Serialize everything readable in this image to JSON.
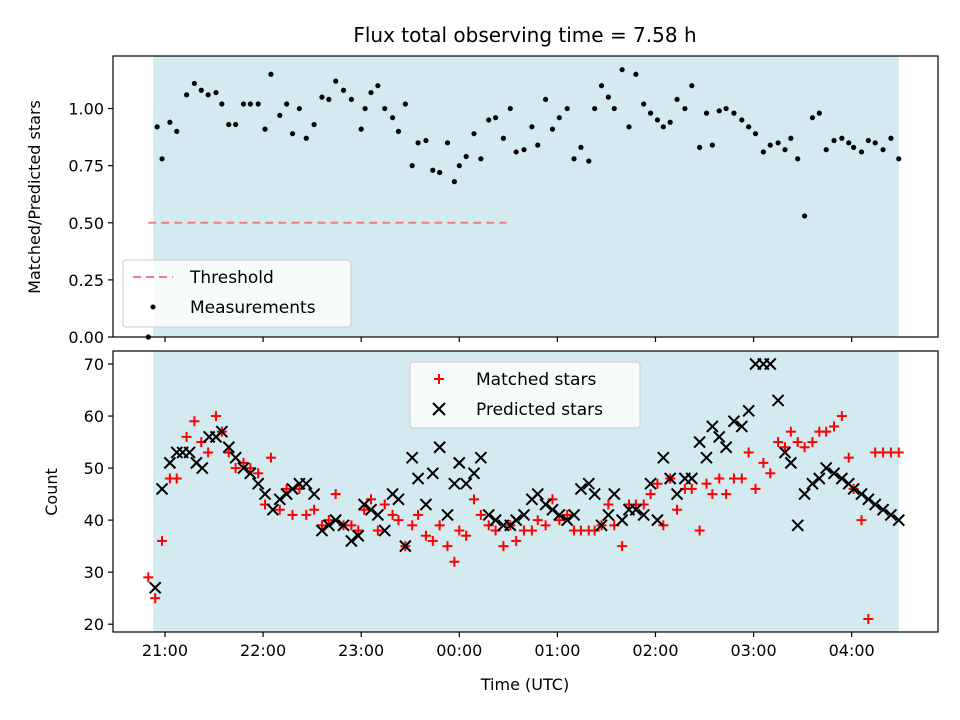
{
  "chart_data": [
    {
      "type": "scatter",
      "title": "Flux total observing time = 7.58 h",
      "ylabel": "Matched/Predicted stars",
      "xlabel": "",
      "ylim": [
        0,
        1.23
      ],
      "yticks": [
        0.0,
        0.25,
        0.5,
        0.75,
        1.0
      ],
      "ytick_labels": [
        "0.00",
        "0.25",
        "0.50",
        "0.75",
        "1.00"
      ],
      "threshold": {
        "name": "Threshold",
        "value": 0.5,
        "color": "#f08080",
        "x_start": 20.83,
        "x_end": 24.48
      },
      "legend_position": "lower-left",
      "series": [
        {
          "name": "Measurements",
          "color": "#000000",
          "marker": "dot",
          "x": [
            20.83,
            20.92,
            20.97,
            21.05,
            21.12,
            21.22,
            21.3,
            21.37,
            21.44,
            21.52,
            21.58,
            21.65,
            21.72,
            21.8,
            21.87,
            21.95,
            22.02,
            22.08,
            22.17,
            22.24,
            22.3,
            22.37,
            22.44,
            22.52,
            22.6,
            22.67,
            22.74,
            22.82,
            22.9,
            23.0,
            23.04,
            23.1,
            23.17,
            23.24,
            23.32,
            23.38,
            23.45,
            23.52,
            23.58,
            23.66,
            23.73,
            23.8,
            23.88,
            23.95,
            24.0,
            24.07,
            24.15,
            24.22,
            24.3,
            24.37,
            24.45,
            24.52,
            24.58,
            24.66,
            24.74,
            24.8,
            24.88,
            24.95,
            25.02,
            25.1,
            25.17,
            25.24,
            25.32,
            25.38,
            25.45,
            25.52,
            25.58,
            25.66,
            25.73,
            25.8,
            25.88,
            25.95,
            26.02,
            26.08,
            26.15,
            26.22,
            26.3,
            26.37,
            26.45,
            26.52,
            26.58,
            26.65,
            26.72,
            26.8,
            26.88,
            26.95,
            27.02,
            27.1,
            27.17,
            27.25,
            27.32,
            27.38,
            27.45,
            27.52,
            27.6,
            27.67,
            27.74,
            27.82,
            27.9,
            27.97,
            28.02,
            28.1,
            28.17,
            28.24,
            28.32,
            28.4,
            28.48
          ],
          "y": [
            0.0,
            0.92,
            0.78,
            0.94,
            0.9,
            1.06,
            1.11,
            1.08,
            1.06,
            1.07,
            1.02,
            0.93,
            0.93,
            1.02,
            1.02,
            1.02,
            0.91,
            1.15,
            0.97,
            1.02,
            0.89,
            1.0,
            0.87,
            0.93,
            1.05,
            1.04,
            1.12,
            1.08,
            1.04,
            0.91,
            1.0,
            1.07,
            1.1,
            1.0,
            0.96,
            0.9,
            1.02,
            0.75,
            0.85,
            0.86,
            0.73,
            0.72,
            0.85,
            0.68,
            0.75,
            0.79,
            0.89,
            0.78,
            0.95,
            0.96,
            0.87,
            1.0,
            0.81,
            0.82,
            0.92,
            0.84,
            1.04,
            0.91,
            0.96,
            1.0,
            0.78,
            0.83,
            0.77,
            1.0,
            1.1,
            1.05,
            1.0,
            1.17,
            0.92,
            1.15,
            1.02,
            0.98,
            0.95,
            0.92,
            0.94,
            1.04,
            1.0,
            1.1,
            0.83,
            0.98,
            0.84,
            0.99,
            1.0,
            0.98,
            0.95,
            0.92,
            0.89,
            0.81,
            0.84,
            0.85,
            0.82,
            0.87,
            0.78,
            0.53,
            0.96,
            0.98,
            0.82,
            0.86,
            0.87,
            0.85,
            0.83,
            0.81,
            0.86,
            0.85,
            0.82,
            0.87,
            0.78
          ]
        }
      ]
    },
    {
      "type": "scatter",
      "title": "",
      "ylabel": "Count",
      "xlabel": "Time (UTC)",
      "ylim": [
        18.5,
        72.5
      ],
      "yticks": [
        20,
        30,
        40,
        50,
        60,
        70
      ],
      "ytick_labels": [
        "20",
        "30",
        "40",
        "50",
        "60",
        "70"
      ],
      "xticks": [
        21,
        22,
        23,
        24,
        25,
        26,
        27,
        28
      ],
      "xtick_labels": [
        "21:00",
        "22:00",
        "23:00",
        "00:00",
        "01:00",
        "02:00",
        "03:00",
        "04:00"
      ],
      "legend_position": "top-center",
      "series": [
        {
          "name": "Matched stars",
          "color": "#ff0000",
          "marker": "plus",
          "x": [
            20.83,
            20.9,
            20.97,
            21.05,
            21.12,
            21.22,
            21.3,
            21.37,
            21.44,
            21.52,
            21.58,
            21.65,
            21.72,
            21.8,
            21.87,
            21.95,
            22.02,
            22.08,
            22.17,
            22.24,
            22.3,
            22.37,
            22.44,
            22.52,
            22.6,
            22.67,
            22.74,
            22.82,
            22.9,
            22.97,
            23.03,
            23.1,
            23.17,
            23.24,
            23.32,
            23.38,
            23.45,
            23.52,
            23.58,
            23.66,
            23.73,
            23.8,
            23.88,
            23.95,
            24.0,
            24.07,
            24.15,
            24.22,
            24.3,
            24.37,
            24.45,
            24.52,
            24.58,
            24.66,
            24.74,
            24.8,
            24.88,
            24.95,
            25.02,
            25.1,
            25.17,
            25.24,
            25.32,
            25.38,
            25.45,
            25.52,
            25.58,
            25.66,
            25.73,
            25.8,
            25.88,
            25.95,
            26.02,
            26.08,
            26.15,
            26.22,
            26.3,
            26.37,
            26.45,
            26.52,
            26.58,
            26.65,
            26.72,
            26.8,
            26.88,
            26.95,
            27.02,
            27.1,
            27.17,
            27.25,
            27.32,
            27.38,
            27.45,
            27.52,
            27.6,
            27.67,
            27.74,
            27.82,
            27.9,
            27.97,
            28.02,
            28.1,
            28.17,
            28.24,
            28.32,
            28.4,
            28.48
          ],
          "y": [
            29,
            25,
            36,
            48,
            48,
            56,
            59,
            55,
            53,
            60,
            57,
            53,
            50,
            51,
            50,
            49,
            43,
            52,
            42,
            46,
            41,
            46,
            41,
            42,
            39,
            40,
            45,
            39,
            39,
            38,
            42,
            44,
            38,
            43,
            41,
            40,
            35,
            39,
            41,
            37,
            36,
            39,
            35,
            32,
            38,
            37,
            44,
            41,
            39,
            38,
            35,
            39,
            36,
            38,
            38,
            40,
            39,
            44,
            40,
            41,
            38,
            38,
            38,
            38,
            39,
            43,
            39,
            35,
            43,
            43,
            43,
            45,
            47,
            39,
            48,
            42,
            46,
            46,
            38,
            47,
            45,
            48,
            45,
            48,
            48,
            53,
            46,
            51,
            49,
            55,
            54,
            57,
            55,
            54,
            55,
            57,
            57,
            58,
            60,
            52,
            46,
            40,
            21,
            53,
            53,
            53,
            53
          ]
        },
        {
          "name": "Predicted stars",
          "color": "#000000",
          "marker": "x",
          "x": [
            20.9,
            20.97,
            21.05,
            21.12,
            21.18,
            21.25,
            21.32,
            21.38,
            21.45,
            21.52,
            21.58,
            21.65,
            21.72,
            21.8,
            21.87,
            21.95,
            22.02,
            22.1,
            22.17,
            22.24,
            22.3,
            22.37,
            22.44,
            22.52,
            22.6,
            22.67,
            22.74,
            22.82,
            22.9,
            22.97,
            23.03,
            23.1,
            23.17,
            23.24,
            23.32,
            23.38,
            23.45,
            23.52,
            23.58,
            23.66,
            23.73,
            23.8,
            23.88,
            23.95,
            24.0,
            24.07,
            24.15,
            24.22,
            24.3,
            24.37,
            24.45,
            24.52,
            24.58,
            24.66,
            24.74,
            24.8,
            24.88,
            24.95,
            25.02,
            25.1,
            25.17,
            25.24,
            25.32,
            25.38,
            25.45,
            25.52,
            25.58,
            25.66,
            25.73,
            25.8,
            25.88,
            25.95,
            26.02,
            26.08,
            26.15,
            26.22,
            26.3,
            26.37,
            26.45,
            26.52,
            26.58,
            26.65,
            26.72,
            26.8,
            26.88,
            26.95,
            27.02,
            27.1,
            27.17,
            27.25,
            27.32,
            27.38,
            27.45,
            27.52,
            27.6,
            27.67,
            27.74,
            27.82,
            27.9,
            27.97,
            28.02,
            28.1,
            28.17,
            28.24,
            28.32,
            28.4,
            28.48
          ],
          "y": [
            27,
            46,
            51,
            53,
            53,
            53,
            51,
            50,
            56,
            56,
            57,
            54,
            52,
            50,
            49,
            47,
            45,
            42,
            44,
            45,
            46,
            47,
            47,
            45,
            38,
            39,
            40,
            39,
            36,
            37,
            43,
            42,
            41,
            38,
            45,
            44,
            35,
            52,
            48,
            43,
            49,
            54,
            41,
            47,
            51,
            47,
            49,
            52,
            41,
            40,
            39,
            39,
            40,
            41,
            44,
            45,
            43,
            42,
            41,
            40,
            41,
            46,
            47,
            45,
            39,
            41,
            45,
            40,
            42,
            42,
            41,
            47,
            40,
            52,
            48,
            45,
            48,
            48,
            55,
            52,
            58,
            56,
            54,
            59,
            58,
            61,
            70,
            70,
            70,
            63,
            53,
            51,
            39,
            45,
            47,
            48,
            50,
            49,
            48,
            47,
            46,
            45,
            44,
            43,
            42,
            41,
            40
          ]
        }
      ]
    }
  ]
}
